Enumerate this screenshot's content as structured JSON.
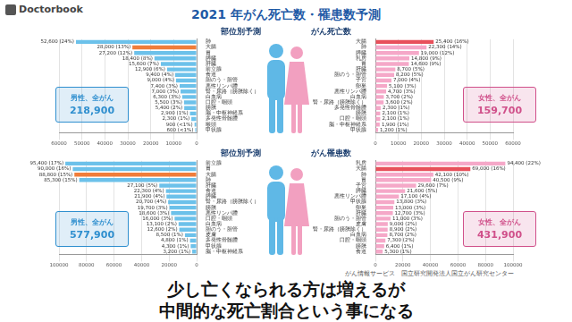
{
  "page": {
    "logo": "Doctorbook",
    "title": "2021 年がん死亡数・罹患数予測",
    "source": "がん情報サービス　国立研究開発法人国立がん研究センター",
    "caption": [
      "少し亡くなられる方は増えるが",
      "中間的な死亡割合という事になる"
    ]
  },
  "chart_data": [
    {
      "type": "bar",
      "orientation": "horizontal",
      "title": "部位別予測",
      "categories": [
        "肺",
        "大腸",
        "胃",
        "膵臓",
        "肝臓",
        "前立腺",
        "食道",
        "胆のう・胆管",
        "悪性リンパ腫",
        "腎・尿路（膀胱除く）",
        "白血病",
        "口腔・咽頭",
        "膀胱",
        "脳・中枢神経系",
        "多発性骨髄腫",
        "喉頭",
        "甲状腺"
      ],
      "values": [
        52600,
        28000,
        27200,
        18400,
        15600,
        12900,
        9400,
        9000,
        7400,
        7000,
        6300,
        5500,
        5400,
        2900,
        2300,
        900,
        600
      ],
      "value_labels": [
        "52,600 (24%)",
        "28,000 (13%)",
        "27,200 (12%)",
        "18,400 (8%)",
        "15,600 (7%)",
        "12,900 (6%)",
        "9,400 (4%)",
        "9,000 (4%)",
        "7,400 (3%)",
        "7,000 (3%)",
        "6,300 (3%)",
        "5,500 (3%)",
        "5,400 (2%)",
        "2,900 (1%)",
        "2,300 (1%)",
        "900 (<1%)",
        "600 (<1%)"
      ],
      "color": "#2f8fcf",
      "colors": [
        "#6cc1ea",
        "#f07d3a",
        "#6cc1ea",
        "#6cc1ea",
        "#6cc1ea",
        "#6cc1ea",
        "#6cc1ea",
        "#6cc1ea",
        "#6cc1ea",
        "#6cc1ea",
        "#6cc1ea",
        "#6cc1ea",
        "#6cc1ea",
        "#6cc1ea",
        "#6cc1ea",
        "#6cc1ea",
        "#6cc1ea"
      ],
      "xlim": [
        60000,
        0
      ],
      "xticks": [
        0,
        10000,
        20000,
        30000,
        40000,
        50000,
        60000
      ],
      "grid": true,
      "data_labels": true,
      "annotations": [
        "男性、全がん",
        "218,900"
      ]
    },
    {
      "type": "bar",
      "orientation": "horizontal",
      "title": "がん死亡数",
      "categories": [
        "大腸",
        "肺",
        "膵臓",
        "乳房",
        "胃",
        "肝臓",
        "胆のう・胆管",
        "子宮",
        "卵巣",
        "悪性リンパ腫",
        "白血病",
        "腎・尿路（膀胱除く）",
        "多発性骨髄腫",
        "膀胱",
        "口腔・咽頭",
        "脳・中枢神経系",
        "甲状腺"
      ],
      "values": [
        25400,
        22300,
        19000,
        14800,
        14600,
        8700,
        8200,
        7000,
        5100,
        4700,
        3700,
        3600,
        2300,
        2100,
        2100,
        1900,
        1200
      ],
      "value_labels": [
        "25,400 (16%)",
        "22,300 (14%)",
        "19,000 (12%)",
        "14,800 (9%)",
        "14,600 (9%)",
        "8,700 (5%)",
        "8,200 (5%)",
        "7,000 (4%)",
        "5,100 (3%)",
        "4,700 (3%)",
        "3,700 (2%)",
        "3,600 (2%)",
        "2,300 (1%)",
        "2,100 (1%)",
        "2,100 (1%)",
        "1,900 (1%)",
        "1,200 (1%)"
      ],
      "color": "#d0508a",
      "colors": [
        "#e8505b",
        "#f5a8c8",
        "#f5a8c8",
        "#f5a8c8",
        "#f5a8c8",
        "#f5a8c8",
        "#f5a8c8",
        "#f5a8c8",
        "#f5a8c8",
        "#f5a8c8",
        "#f5a8c8",
        "#f5a8c8",
        "#f5a8c8",
        "#f5a8c8",
        "#f5a8c8",
        "#f5a8c8",
        "#f5a8c8"
      ],
      "xlim": [
        0,
        60000
      ],
      "xticks": [
        0,
        10000,
        20000,
        30000,
        40000,
        50000,
        60000
      ],
      "grid": true,
      "data_labels": true,
      "annotations": [
        "女性、全がん",
        "159,700"
      ]
    },
    {
      "type": "bar",
      "orientation": "horizontal",
      "title": "部位別予測",
      "categories": [
        "前立腺",
        "胃",
        "大腸",
        "肺",
        "肝臓",
        "食道",
        "膵臓",
        "腎・尿路（膀胱除く）",
        "膀胱",
        "悪性リンパ腫",
        "口腔・咽頭",
        "白血病",
        "胆のう・胆管",
        "皮膚",
        "多発性骨髄腫",
        "甲状腺",
        "脳・中枢神経系"
      ],
      "values": [
        95400,
        90000,
        88800,
        85300,
        27100,
        22300,
        21900,
        20700,
        19700,
        18600,
        16000,
        13100,
        12600,
        8500,
        4800,
        4300,
        3200
      ],
      "value_labels": [
        "95,400 (17%)",
        "90,000 (16%)",
        "88,800 (15%)",
        "85,300 (15%)",
        "27,100 (5%)",
        "22,300 (4%)",
        "21,900 (4%)",
        "20,700 (4%)",
        "19,700 (3%)",
        "18,600 (3%)",
        "16,000 (3%)",
        "13,100 (2%)",
        "12,600 (2%)",
        "8,500 (1%)",
        "4,800 (1%)",
        "4,300 (1%)",
        "3,200 (1%)"
      ],
      "color": "#2f8fcf",
      "colors": [
        "#6cc1ea",
        "#6cc1ea",
        "#f07d3a",
        "#6cc1ea",
        "#6cc1ea",
        "#6cc1ea",
        "#6cc1ea",
        "#6cc1ea",
        "#6cc1ea",
        "#6cc1ea",
        "#6cc1ea",
        "#6cc1ea",
        "#6cc1ea",
        "#6cc1ea",
        "#6cc1ea",
        "#6cc1ea",
        "#6cc1ea"
      ],
      "xlim": [
        100000,
        0
      ],
      "xticks": [
        0,
        20000,
        40000,
        60000,
        80000,
        100000
      ],
      "grid": true,
      "data_labels": true,
      "annotations": [
        "男性、全がん",
        "577,900"
      ]
    },
    {
      "type": "bar",
      "orientation": "horizontal",
      "title": "がん罹患数",
      "categories": [
        "乳房",
        "大腸",
        "肺",
        "胃",
        "子宮",
        "膵臓",
        "悪性リンパ腫",
        "甲状腺",
        "卵巣",
        "肝臓",
        "胆のう・胆管",
        "皮膚",
        "腎・尿路（膀胱除く）",
        "白血病",
        "口腔・咽頭",
        "膀胱",
        "食道"
      ],
      "values": [
        94400,
        69000,
        42100,
        40500,
        29600,
        21600,
        17100,
        13800,
        13000,
        12700,
        11000,
        9000,
        8900,
        8700,
        7300,
        6400,
        5300
      ],
      "value_labels": [
        "94,400 (22%)",
        "69,000 (16%)",
        "42,100 (10%)",
        "40,500 (9%)",
        "29,600 (7%)",
        "21,600 (5%)",
        "17,100 (4%)",
        "13,800 (3%)",
        "13,000 (3%)",
        "12,700 (3%)",
        "11,000 (3%)",
        "9,000 (2%)",
        "8,900 (2%)",
        "8,700 (2%)",
        "7,300 (2%)",
        "6,400 (1%)",
        "5,300 (1%)"
      ],
      "color": "#d0508a",
      "colors": [
        "#f5a8c8",
        "#e8505b",
        "#f5a8c8",
        "#f5a8c8",
        "#f5a8c8",
        "#f5a8c8",
        "#f5a8c8",
        "#f5a8c8",
        "#f5a8c8",
        "#f5a8c8",
        "#f5a8c8",
        "#f5a8c8",
        "#f5a8c8",
        "#f5a8c8",
        "#f5a8c8",
        "#f5a8c8",
        "#f5a8c8"
      ],
      "xlim": [
        0,
        100000
      ],
      "xticks": [
        0,
        20000,
        40000,
        60000,
        80000,
        100000
      ],
      "grid": true,
      "data_labels": true,
      "annotations": [
        "女性、全がん",
        "431,900"
      ]
    }
  ]
}
